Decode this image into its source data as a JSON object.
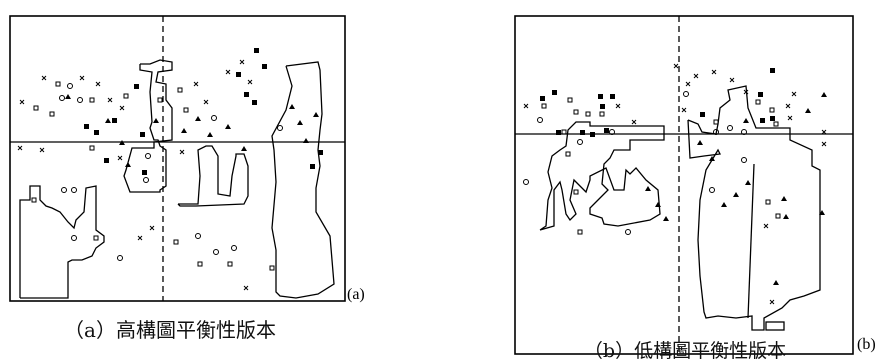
{
  "figure": {
    "panel_a": {
      "tag": "(a)",
      "caption": "（a）高構圖平衡性版本"
    },
    "panel_b": {
      "tag": "(b)",
      "caption": "（b）低構圖平衡性版本"
    },
    "symbols": [
      "hollow-square",
      "filled-square",
      "hollow-circle",
      "x-cross",
      "filled-triangle"
    ],
    "colors": {
      "ink": "#000000",
      "background": "#ffffff"
    }
  }
}
